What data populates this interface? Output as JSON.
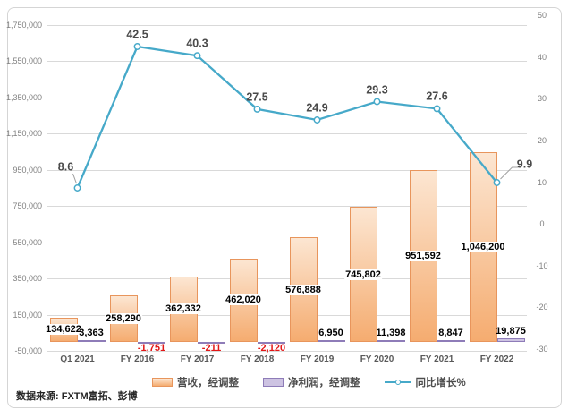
{
  "source_note": "数据来源: FXTM富拓、彭博",
  "legend": [
    {
      "label": "营收，经调整"
    },
    {
      "label": "净利润，经调整"
    },
    {
      "label": "同比增长%"
    }
  ],
  "colors": {
    "revenue_fill_top": "#fce6d2",
    "revenue_fill_bottom": "#f5ac70",
    "revenue_border": "#e8955c",
    "profit_fill": "#cdc3e2",
    "profit_border": "#8e7cb8",
    "line": "#46a9c9",
    "grid": "#d9d9d9",
    "leader": "#a0a0a0",
    "negative_label": "#e21717"
  },
  "chart_data": {
    "type": "combo",
    "categories": [
      "Q1 2021",
      "FY 2016",
      "FY 2017",
      "FY 2018",
      "FY 2019",
      "FY 2020",
      "FY 2021",
      "FY 2022"
    ],
    "series": [
      {
        "name": "营收，经调整",
        "type": "bar",
        "axis": "primary",
        "values": [
          134622,
          258290,
          362332,
          462020,
          576888,
          745802,
          951592,
          1046200
        ],
        "labels": [
          "134,622",
          "258,290",
          "362,332",
          "462,020",
          "576,888",
          "745,802",
          "951,592",
          "1,046,200"
        ]
      },
      {
        "name": "净利润，经调整",
        "type": "bar",
        "axis": "primary",
        "values": [
          3363,
          -1751,
          -211,
          -2120,
          6950,
          11398,
          8847,
          19875
        ],
        "labels": [
          "3,363",
          "-1,751",
          "-211",
          "-2,120",
          "6,950",
          "11,398",
          "8,847",
          "19,875"
        ]
      },
      {
        "name": "同比增长%",
        "type": "line",
        "axis": "secondary",
        "values": [
          8.6,
          42.5,
          40.3,
          27.5,
          24.9,
          29.3,
          27.6,
          9.9
        ],
        "labels": [
          "8.6",
          "42.5",
          "40.3",
          "27.5",
          "24.9",
          "29.3",
          "27.6",
          "9.9"
        ]
      }
    ],
    "primary_axis": {
      "min": -50000,
      "max": 1750000,
      "step": 200000,
      "tick_labels": [
        "-50,000",
        "150,000",
        "350,000",
        "550,000",
        "750,000",
        "950,000",
        "1,150,000",
        "1,350,000",
        "1,550,000",
        "1,750,000"
      ]
    },
    "secondary_axis": {
      "min": -30,
      "max": 50,
      "step": 10,
      "tick_labels": [
        "-30",
        "-20",
        "-10",
        "0",
        "10",
        "20",
        "30",
        "40",
        "50"
      ]
    },
    "grid": true,
    "legend_position": "bottom"
  }
}
